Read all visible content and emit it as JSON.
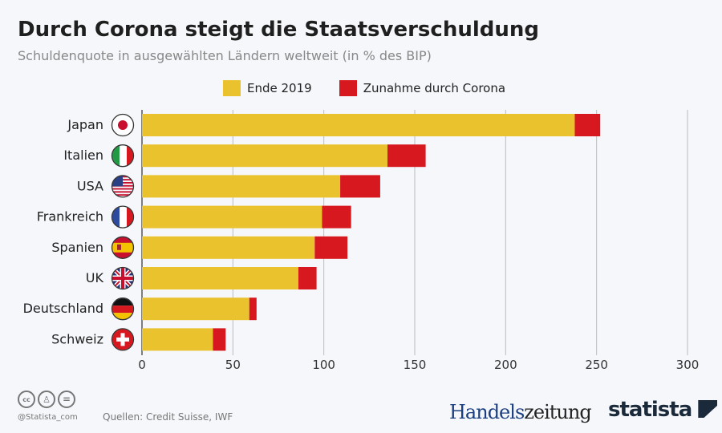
{
  "chart_data": {
    "type": "bar",
    "orientation": "horizontal",
    "stacked": true,
    "title": "Durch Corona steigt die Staatsverschuldung",
    "subtitle": "Schuldenquote in ausgewählten Ländern weltweit (in % des BIP)",
    "categories": [
      "Japan",
      "Italien",
      "USA",
      "Frankreich",
      "Spanien",
      "UK",
      "Deutschland",
      "Schweiz"
    ],
    "series": [
      {
        "name": "Ende 2019",
        "color": "#eac22d",
        "values": [
          238,
          135,
          109,
          99,
          95,
          86,
          59,
          39
        ]
      },
      {
        "name": "Zunahme durch Corona",
        "color": "#d7191f",
        "values": [
          14,
          21,
          22,
          16,
          18,
          10,
          4,
          7
        ]
      }
    ],
    "xlim": [
      0,
      300
    ],
    "xticks": [
      "0",
      "50",
      "100",
      "150",
      "200",
      "250",
      "300"
    ],
    "grid": true,
    "legend_position": "top"
  },
  "footer": {
    "handle": "@Statista_com",
    "source": "Quellen: Credit Suisse, IWF",
    "logo1a": "Handels",
    "logo1b": "zeitung",
    "logo2": "statista"
  }
}
